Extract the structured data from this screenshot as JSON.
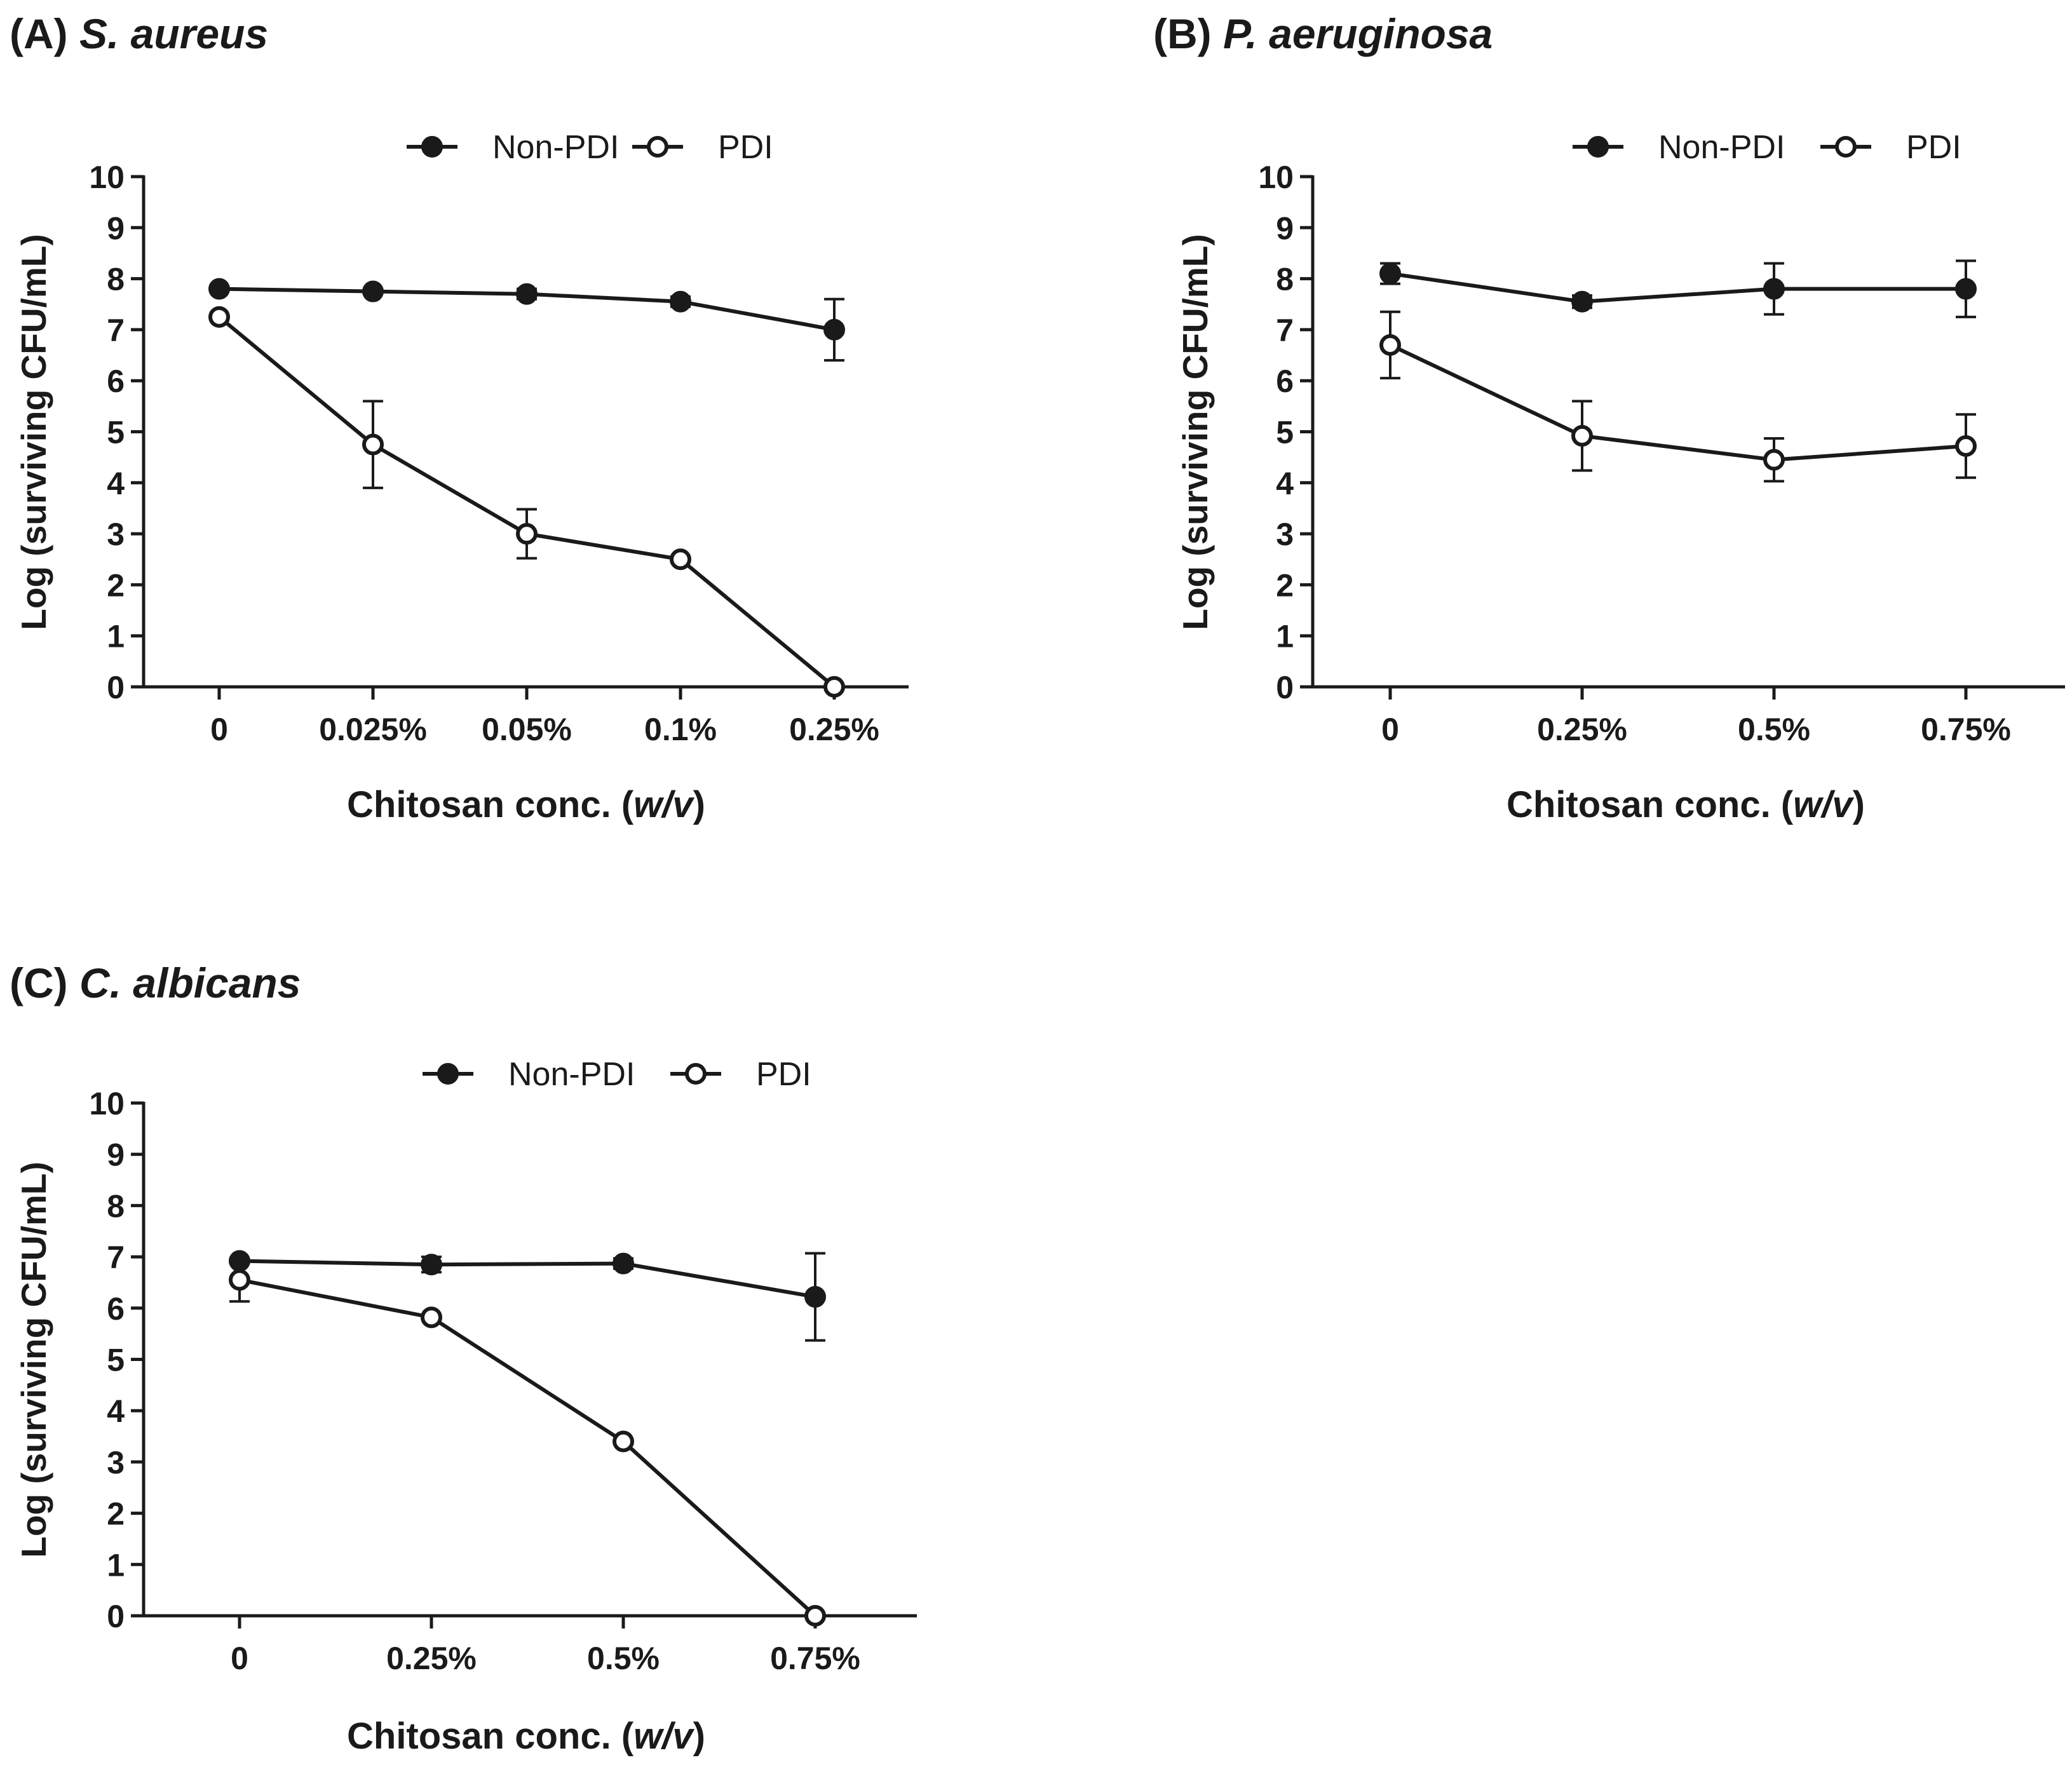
{
  "colors": {
    "ink": "#1a1a1a",
    "background": "#ffffff"
  },
  "chart_data": [
    {
      "type": "line",
      "panel_label": "(A)",
      "organism": "S. aureus",
      "categories": [
        "0",
        "0.025%",
        "0.05%",
        "0.1%",
        "0.25%"
      ],
      "xlabel": "Chitosan conc.",
      "xlabel_unit": "w/v",
      "ylabel": "Log (surviving CFU/mL)",
      "ylim": [
        0,
        10
      ],
      "yticks": [
        "0",
        "1",
        "2",
        "3",
        "4",
        "5",
        "6",
        "7",
        "8",
        "9",
        "10"
      ],
      "legend_position": "top",
      "series": [
        {
          "name": "Non-PDI",
          "marker": "filled-circle",
          "values": [
            7.8,
            7.75,
            7.7,
            7.55,
            7.0
          ],
          "errors": [
            0.05,
            0.05,
            0.1,
            0.1,
            0.6
          ]
        },
        {
          "name": "PDI",
          "marker": "open-circle",
          "values": [
            7.25,
            4.75,
            3.0,
            2.5,
            0.0
          ],
          "errors": [
            0.05,
            0.85,
            0.48,
            0.05,
            0.0
          ]
        }
      ]
    },
    {
      "type": "line",
      "panel_label": "(B)",
      "organism": "P. aeruginosa",
      "categories": [
        "0",
        "0.25%",
        "0.5%",
        "0.75%"
      ],
      "xlabel": "Chitosan conc.",
      "xlabel_unit": "w/v",
      "ylabel": "Log (surviving CFU/mL)",
      "ylim": [
        0,
        10
      ],
      "yticks": [
        "0",
        "1",
        "2",
        "3",
        "4",
        "5",
        "6",
        "7",
        "8",
        "9",
        "10"
      ],
      "legend_position": "top-right",
      "series": [
        {
          "name": "Non-PDI",
          "marker": "filled-circle",
          "values": [
            8.1,
            7.55,
            7.8,
            7.8
          ],
          "errors": [
            0.2,
            0.12,
            0.5,
            0.55
          ]
        },
        {
          "name": "PDI",
          "marker": "open-circle",
          "values": [
            6.7,
            4.92,
            4.45,
            4.72
          ],
          "errors": [
            0.65,
            0.68,
            0.42,
            0.62
          ]
        }
      ]
    },
    {
      "type": "line",
      "panel_label": "(C)",
      "organism": "C. albicans",
      "categories": [
        "0",
        "0.25%",
        "0.5%",
        "0.75%"
      ],
      "xlabel": "Chitosan conc.",
      "xlabel_unit": "w/v",
      "ylabel": "Log (surviving CFU/mL)",
      "ylim": [
        0,
        10
      ],
      "yticks": [
        "0",
        "1",
        "2",
        "3",
        "4",
        "5",
        "6",
        "7",
        "8",
        "9",
        "10"
      ],
      "legend_position": "top",
      "series": [
        {
          "name": "Non-PDI",
          "marker": "filled-circle",
          "values": [
            6.92,
            6.85,
            6.87,
            6.22
          ],
          "errors": [
            0.05,
            0.15,
            0.1,
            0.85
          ]
        },
        {
          "name": "PDI",
          "marker": "open-circle",
          "values": [
            6.55,
            5.82,
            3.4,
            0.0
          ],
          "errors": [
            0.42,
            0.05,
            0.05,
            0.0
          ]
        }
      ]
    }
  ]
}
